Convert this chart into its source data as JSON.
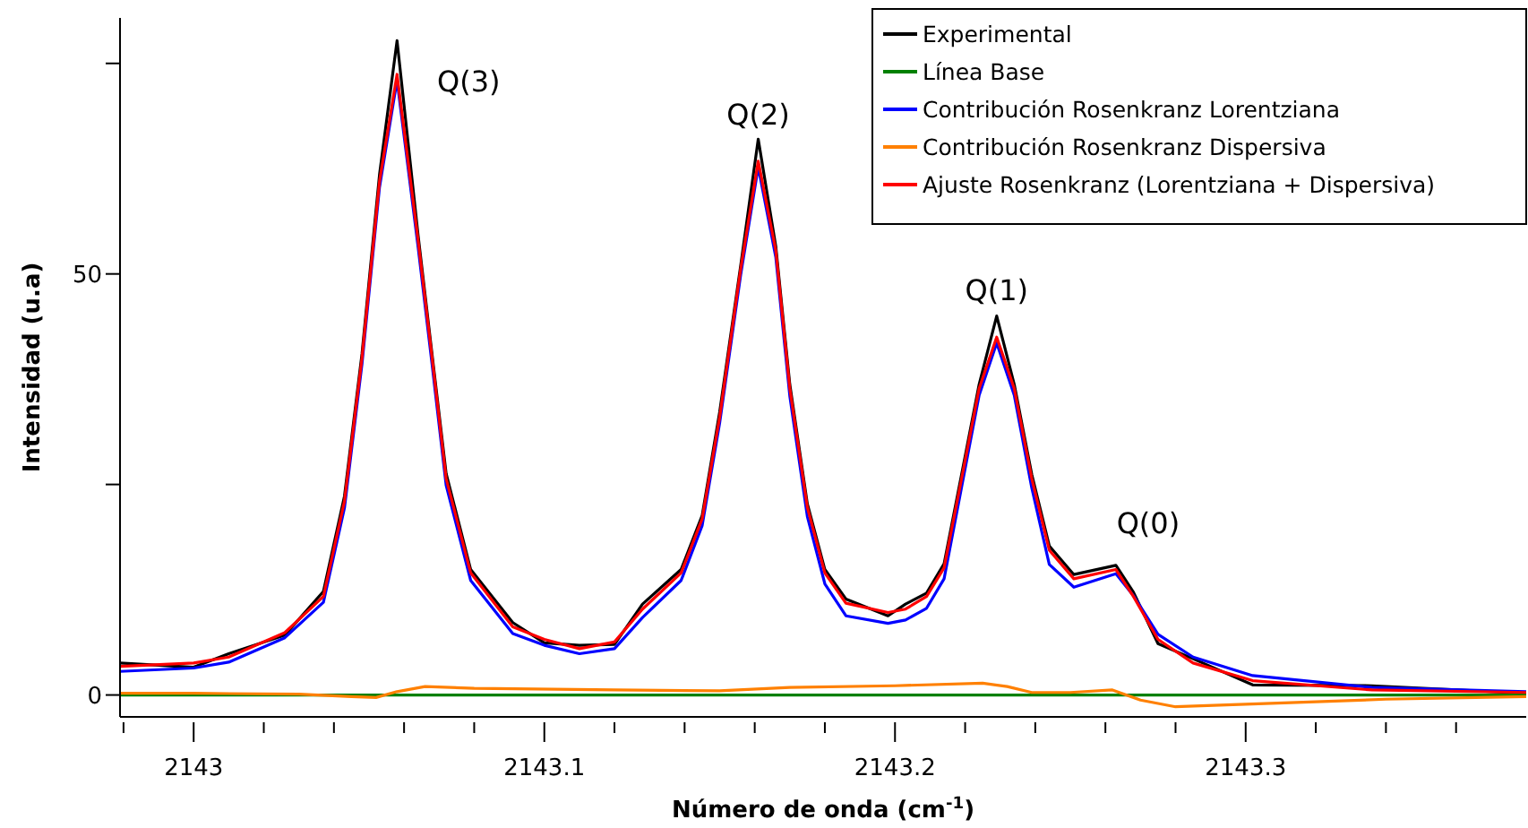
{
  "chart_data": {
    "type": "line",
    "xlabel": "Número de onda (cm$^{-1}$)",
    "ylabel": "Intensidad (u.a)",
    "xlim": [
      2142.979,
      2143.38
    ],
    "ylim": [
      -2.6,
      80.4
    ],
    "xticks": [
      {
        "value": 2142.98,
        "label": null
      },
      2143,
      {
        "value": 2143.02,
        "label": null
      },
      {
        "value": 2143.04,
        "label": null
      },
      {
        "value": 2143.06,
        "label": null
      },
      {
        "value": 2143.08,
        "label": null
      },
      2143.1,
      {
        "value": 2143.12,
        "label": null
      },
      {
        "value": 2143.14,
        "label": null
      },
      {
        "value": 2143.16,
        "label": null
      },
      {
        "value": 2143.18,
        "label": null
      },
      2143.2,
      {
        "value": 2143.22,
        "label": null
      },
      {
        "value": 2143.24,
        "label": null
      },
      {
        "value": 2143.26,
        "label": null
      },
      {
        "value": 2143.28,
        "label": null
      },
      2143.3,
      {
        "value": 2143.32,
        "label": null
      },
      {
        "value": 2143.34,
        "label": null
      },
      {
        "value": 2143.36,
        "label": null
      }
    ],
    "yticks": [
      0,
      {
        "value": 25,
        "label": null
      },
      50,
      {
        "value": 75,
        "label": null
      }
    ],
    "grid": false,
    "legend": "top right",
    "line_style": "solid",
    "marker": "none",
    "annotations": [
      {
        "text": "Q(3)",
        "x": 2143.058,
        "y": 73.7
      },
      {
        "text": "Q(2)",
        "x": 2143.161,
        "y": 63.4
      },
      {
        "text": "Q(1)",
        "x": 2143.229,
        "y": 42.5
      },
      {
        "text": "Q(0)",
        "x": 2143.263,
        "y": 14.9
      }
    ],
    "series": [
      {
        "name": "Experimental",
        "color": "#000000",
        "x": [
          2142.979,
          2143.0,
          2143.01,
          2143.026,
          2143.037,
          2143.043,
          2143.048,
          2143.053,
          2143.058,
          2143.064,
          2143.068,
          2143.072,
          2143.079,
          2143.091,
          2143.1,
          2143.11,
          2143.12,
          2143.128,
          2143.139,
          2143.145,
          2143.15,
          2143.156,
          2143.161,
          2143.166,
          2143.17,
          2143.175,
          2143.18,
          2143.186,
          2143.198,
          2143.203,
          2143.209,
          2143.214,
          2143.219,
          2143.224,
          2143.229,
          2143.234,
          2143.239,
          2143.244,
          2143.251,
          2143.263,
          2143.268,
          2143.275,
          2143.285,
          2143.302,
          2143.336,
          2143.38
        ],
        "values": [
          3.8,
          3.3,
          4.9,
          7.1,
          12.3,
          23.6,
          40.5,
          61.8,
          77.7,
          54.6,
          40.4,
          26.3,
          14.9,
          8.6,
          6.2,
          5.9,
          6.0,
          10.8,
          14.9,
          21.3,
          33.6,
          51.0,
          66.0,
          53.3,
          36.9,
          22.7,
          14.9,
          11.4,
          9.4,
          10.8,
          12.1,
          15.6,
          26.2,
          36.9,
          45.0,
          36.9,
          26.2,
          17.7,
          14.3,
          15.4,
          12.2,
          6.1,
          4.3,
          1.2,
          1.1,
          0.2
        ]
      },
      {
        "name": "Línea Base",
        "color": "#008000",
        "x": [
          2142.979,
          2143.38
        ],
        "values": [
          0,
          0
        ]
      },
      {
        "name": "Contribución Rosenkranz Lorentziana",
        "color": "#0000ff",
        "x": [
          2142.979,
          2143.0,
          2143.01,
          2143.026,
          2143.037,
          2143.043,
          2143.048,
          2143.053,
          2143.058,
          2143.064,
          2143.068,
          2143.072,
          2143.079,
          2143.091,
          2143.1,
          2143.11,
          2143.12,
          2143.128,
          2143.139,
          2143.145,
          2143.15,
          2143.156,
          2143.161,
          2143.166,
          2143.17,
          2143.175,
          2143.18,
          2143.186,
          2143.198,
          2143.203,
          2143.209,
          2143.214,
          2143.219,
          2143.224,
          2143.229,
          2143.234,
          2143.239,
          2143.244,
          2143.251,
          2143.263,
          2143.268,
          2143.275,
          2143.285,
          2143.302,
          2143.336,
          2143.38
        ],
        "values": [
          2.8,
          3.2,
          3.9,
          6.8,
          11.0,
          22.2,
          39.3,
          60.3,
          73.0,
          53.2,
          39.2,
          24.9,
          13.6,
          7.3,
          5.9,
          4.9,
          5.5,
          9.2,
          13.6,
          20.1,
          32.3,
          49.9,
          62.7,
          52.0,
          35.5,
          21.2,
          13.2,
          9.4,
          8.5,
          8.9,
          10.3,
          13.8,
          24.7,
          35.6,
          41.8,
          35.6,
          24.6,
          15.5,
          12.8,
          14.4,
          11.8,
          7.2,
          4.5,
          2.3,
          0.9,
          0.4
        ]
      },
      {
        "name": "Contribución Rosenkranz Dispersiva",
        "color": "#ff8000",
        "x": [
          2142.979,
          2143.0,
          2143.03,
          2143.045,
          2143.052,
          2143.058,
          2143.066,
          2143.08,
          2143.12,
          2143.15,
          2143.17,
          2143.2,
          2143.225,
          2143.232,
          2143.239,
          2143.25,
          2143.262,
          2143.27,
          2143.28,
          2143.3,
          2143.34,
          2143.38
        ],
        "values": [
          0.2,
          0.2,
          0.1,
          -0.2,
          -0.3,
          0.4,
          1.0,
          0.8,
          0.6,
          0.5,
          0.9,
          1.1,
          1.4,
          1.0,
          0.3,
          0.3,
          0.6,
          -0.6,
          -1.4,
          -1.1,
          -0.5,
          -0.2
        ]
      },
      {
        "name": "Ajuste Rosenkranz (Lorentziana + Dispersiva)",
        "color": "#ff0000",
        "x": [
          2142.979,
          2143.0,
          2143.01,
          2143.026,
          2143.037,
          2143.043,
          2143.048,
          2143.053,
          2143.058,
          2143.064,
          2143.068,
          2143.072,
          2143.079,
          2143.091,
          2143.1,
          2143.11,
          2143.12,
          2143.128,
          2143.139,
          2143.145,
          2143.15,
          2143.156,
          2143.161,
          2143.166,
          2143.17,
          2143.175,
          2143.18,
          2143.186,
          2143.198,
          2143.203,
          2143.209,
          2143.214,
          2143.219,
          2143.224,
          2143.229,
          2143.234,
          2143.239,
          2143.244,
          2143.251,
          2143.263,
          2143.268,
          2143.275,
          2143.285,
          2143.302,
          2143.336,
          2143.38
        ],
        "values": [
          3.4,
          3.8,
          4.5,
          7.4,
          11.7,
          23,
          40,
          61,
          73.7,
          54,
          40,
          25.7,
          14.5,
          8.1,
          6.6,
          5.5,
          6.3,
          10.2,
          14.5,
          20.9,
          33,
          50.6,
          63.4,
          52.8,
          36.4,
          22.3,
          14.5,
          10.9,
          9.8,
          10.2,
          11.7,
          15.1,
          25.7,
          36.4,
          42.5,
          36.4,
          25.7,
          17.2,
          13.8,
          14.9,
          11.7,
          6.6,
          3.8,
          1.7,
          0.6,
          0.3
        ]
      }
    ]
  }
}
